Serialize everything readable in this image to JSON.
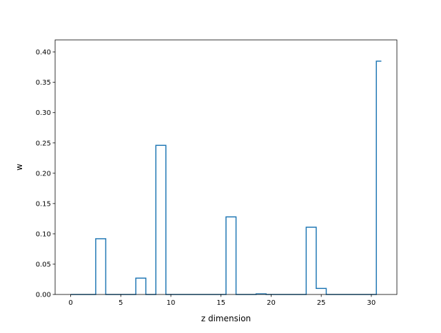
{
  "chart_data": {
    "type": "line",
    "style": "steps-mid",
    "title": "",
    "xlabel": "z dimension",
    "ylabel": "w",
    "xlim": [
      -1.55,
      32.55
    ],
    "ylim": [
      0,
      0.42
    ],
    "xticks": [
      0,
      5,
      10,
      15,
      20,
      25,
      30
    ],
    "xtick_labels": [
      "0",
      "5",
      "10",
      "15",
      "20",
      "25",
      "30"
    ],
    "yticks": [
      0.0,
      0.05,
      0.1,
      0.15,
      0.2,
      0.25,
      0.3,
      0.35,
      0.4
    ],
    "ytick_labels": [
      "0.00",
      "0.05",
      "0.10",
      "0.15",
      "0.20",
      "0.25",
      "0.30",
      "0.35",
      "0.40"
    ],
    "grid": false,
    "series": [
      {
        "color": "#1f77b4",
        "x": [
          0,
          1,
          2,
          3,
          4,
          5,
          6,
          7,
          8,
          9,
          10,
          11,
          12,
          13,
          14,
          15,
          16,
          17,
          18,
          19,
          20,
          21,
          22,
          23,
          24,
          25,
          26,
          27,
          28,
          29,
          30,
          31
        ],
        "y": [
          0,
          0,
          0,
          0.092,
          0,
          0,
          0,
          0.027,
          0,
          0.246,
          0,
          0,
          0,
          0,
          0,
          0,
          0.128,
          0,
          0,
          0.001,
          0,
          0,
          0,
          0,
          0.111,
          0.01,
          0,
          0,
          0,
          0,
          0,
          0.385
        ]
      }
    ]
  }
}
